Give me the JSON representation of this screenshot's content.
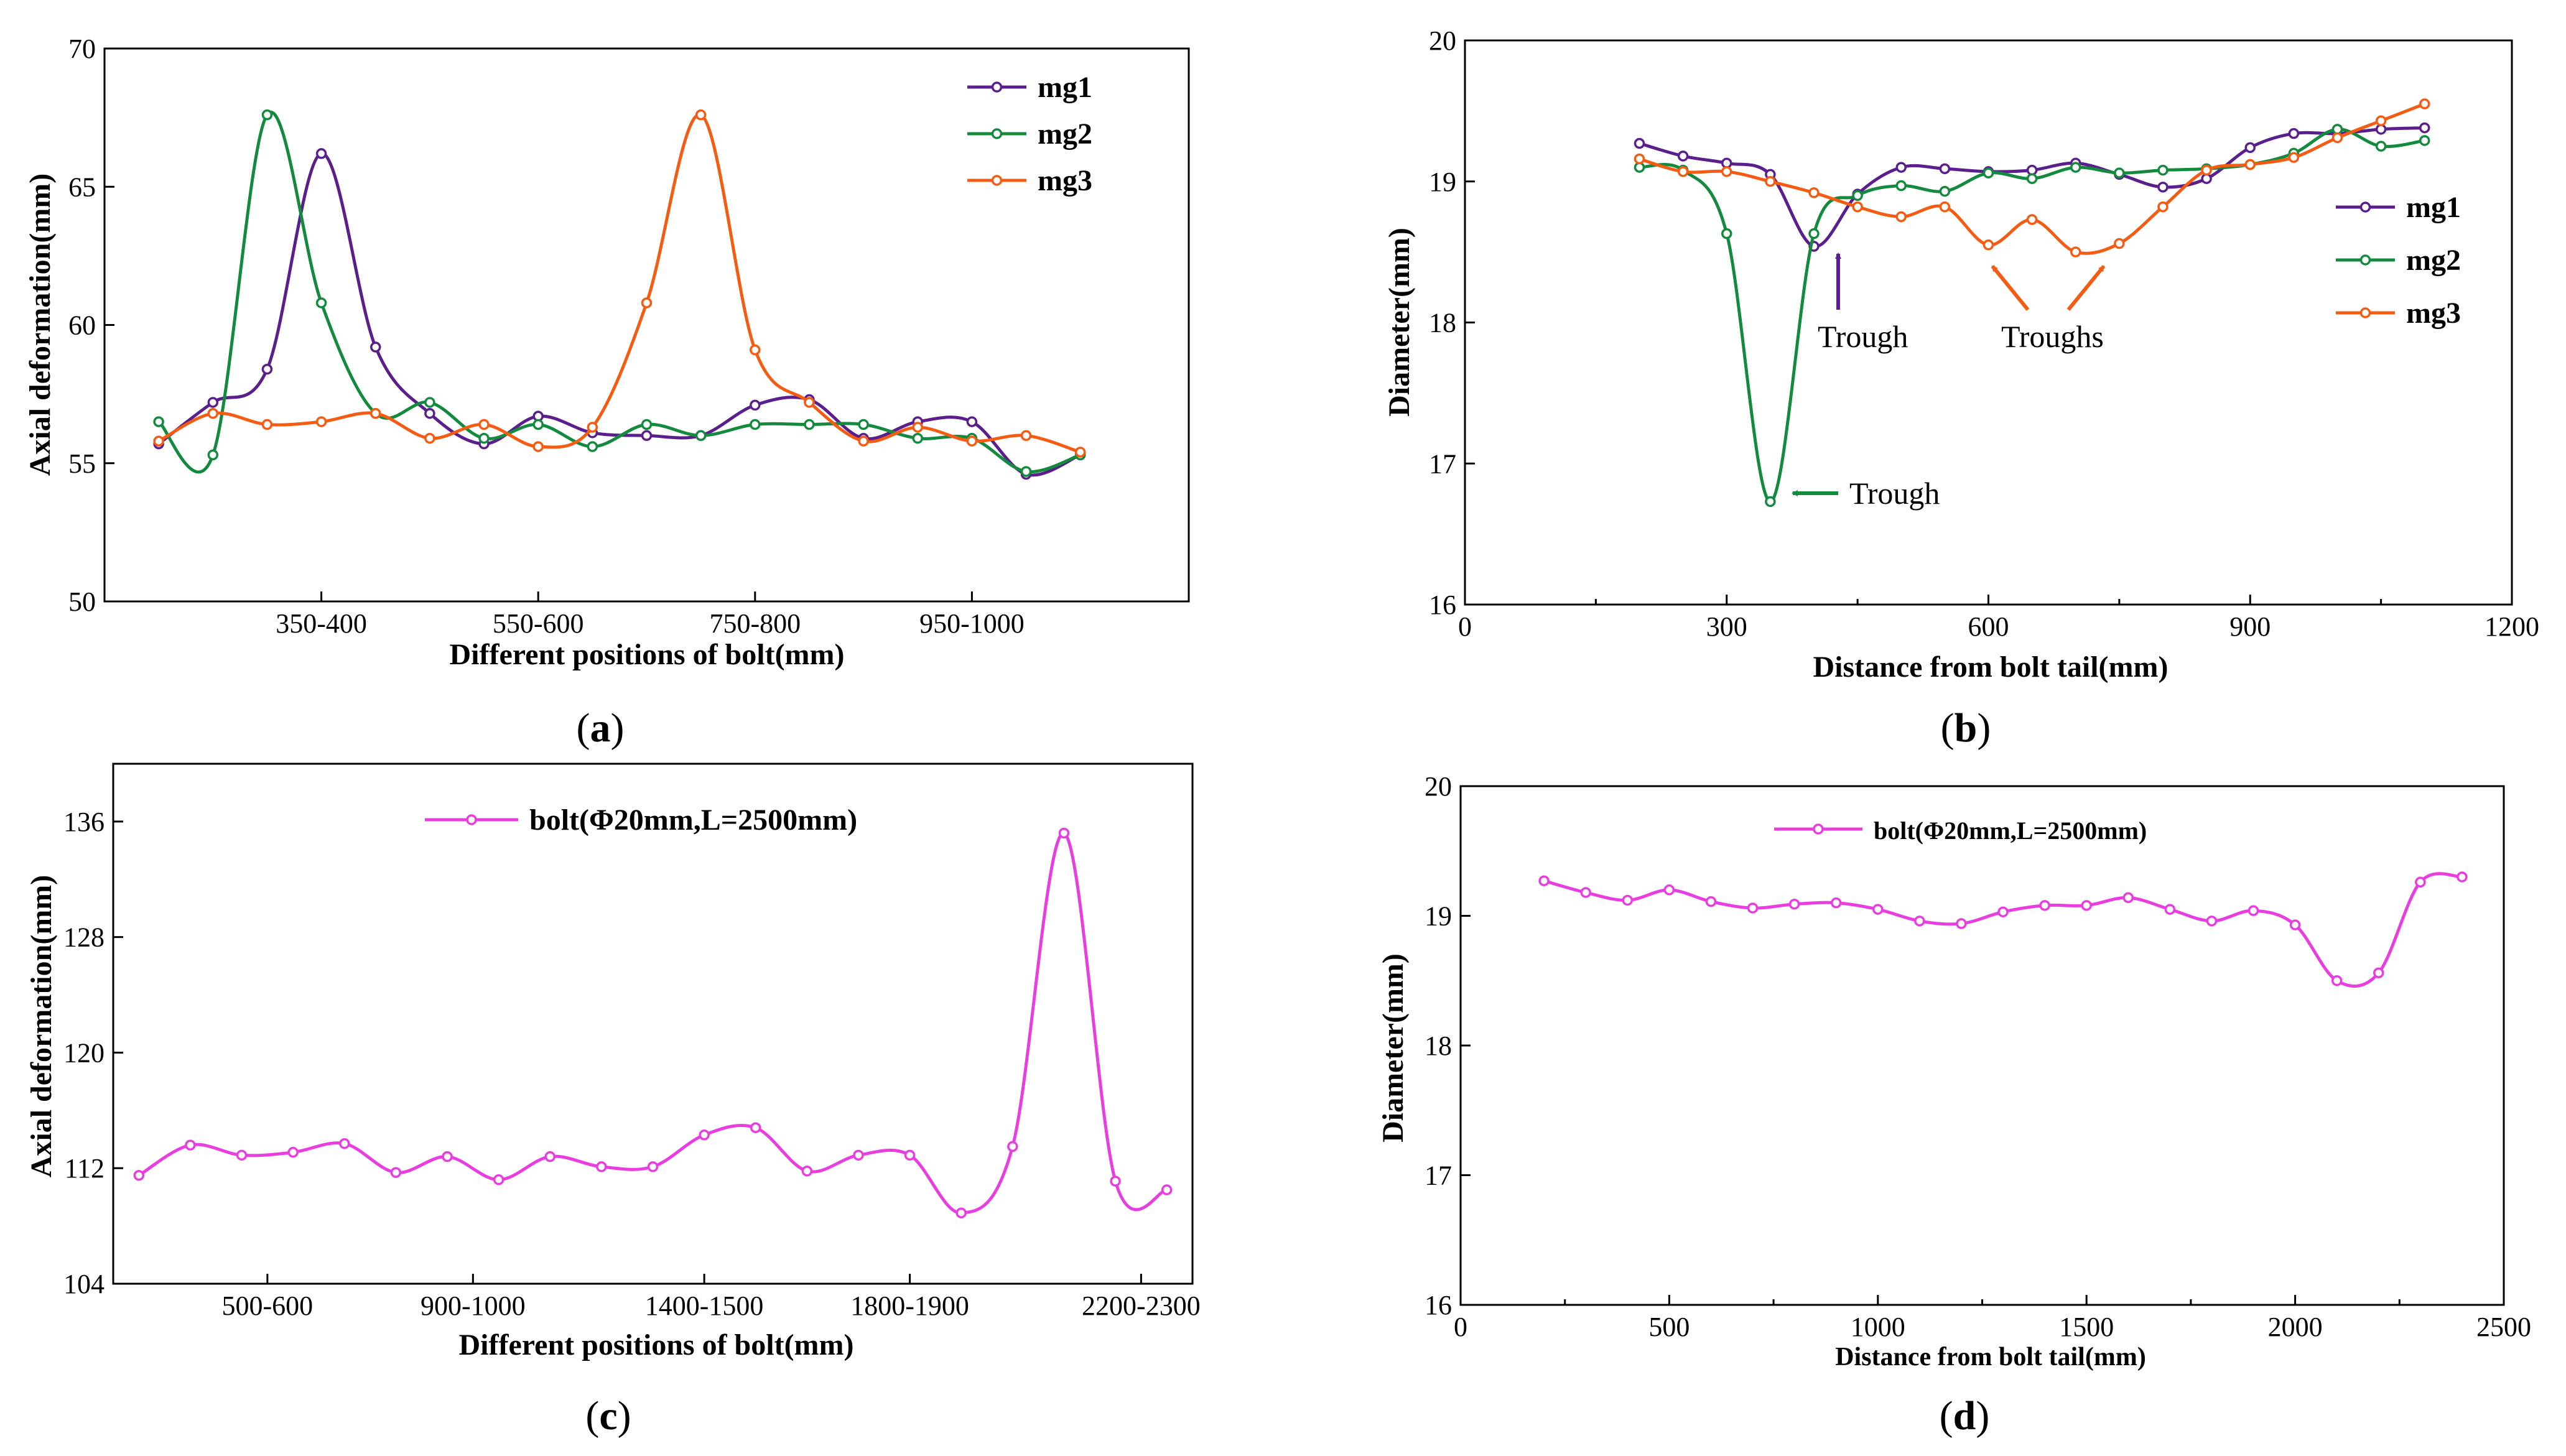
{
  "chart_data": [
    {
      "id": "a",
      "panel_label": "a",
      "type": "line",
      "title": "",
      "xlabel": "Different positions of bolt(mm)",
      "ylabel": "Axial deformation(mm)",
      "xlim": [
        0,
        20
      ],
      "ylim": [
        50,
        70
      ],
      "yticks": [
        50,
        55,
        60,
        65,
        70
      ],
      "xtick_positions": [
        4,
        8,
        12,
        16
      ],
      "xtick_labels": [
        "350-400",
        "550-600",
        "750-800",
        "950-1000"
      ],
      "legend_position": "top-right",
      "series": [
        {
          "name": "mg1",
          "color": "#5a1f8c",
          "x": [
            1,
            2,
            3,
            4,
            5,
            6,
            7,
            8,
            9,
            10,
            11,
            12,
            13,
            14,
            15,
            16,
            17,
            18
          ],
          "y": [
            55.7,
            57.2,
            58.4,
            66.2,
            59.2,
            56.8,
            55.7,
            56.7,
            56.1,
            56.0,
            56.0,
            57.1,
            57.3,
            55.9,
            56.5,
            56.5,
            54.6,
            55.3
          ]
        },
        {
          "name": "mg2",
          "color": "#138a3e",
          "x": [
            1,
            2,
            3,
            4,
            5,
            6,
            7,
            8,
            9,
            10,
            11,
            12,
            13,
            14,
            15,
            16,
            17,
            18
          ],
          "y": [
            56.5,
            55.3,
            67.6,
            60.8,
            56.8,
            57.2,
            55.9,
            56.4,
            55.6,
            56.4,
            56.0,
            56.4,
            56.4,
            56.4,
            55.9,
            55.9,
            54.7,
            55.3
          ]
        },
        {
          "name": "mg3",
          "color": "#f45c13",
          "x": [
            1,
            2,
            3,
            4,
            5,
            6,
            7,
            8,
            9,
            10,
            11,
            12,
            13,
            14,
            15,
            16,
            17,
            18
          ],
          "y": [
            55.8,
            56.8,
            56.4,
            56.5,
            56.8,
            55.9,
            56.4,
            55.6,
            56.3,
            60.8,
            67.6,
            59.1,
            57.2,
            55.8,
            56.3,
            55.8,
            56.0,
            55.4
          ]
        }
      ],
      "annotations": []
    },
    {
      "id": "b",
      "panel_label": "b",
      "type": "line",
      "title": "",
      "xlabel": "Distance from bolt tail(mm)",
      "ylabel": "Diameter(mm)",
      "xlim": [
        0,
        1200
      ],
      "ylim": [
        16,
        20
      ],
      "yticks": [
        16,
        17,
        18,
        19,
        20
      ],
      "xtick_positions": [
        0,
        300,
        600,
        900,
        1200
      ],
      "xtick_labels": [
        "0",
        "300",
        "600",
        "900",
        "1200"
      ],
      "legend_position": "right",
      "series": [
        {
          "name": "mg1",
          "color": "#5a1f8c",
          "x": [
            200,
            250,
            300,
            350,
            400,
            450,
            500,
            550,
            600,
            650,
            700,
            750,
            800,
            850,
            900,
            950,
            1000,
            1050,
            1100
          ],
          "y": [
            19.27,
            19.18,
            19.13,
            19.05,
            18.54,
            18.91,
            19.1,
            19.09,
            19.07,
            19.08,
            19.13,
            19.05,
            18.96,
            19.02,
            19.24,
            19.34,
            19.34,
            19.37,
            19.38
          ]
        },
        {
          "name": "mg2",
          "color": "#138a3e",
          "x": [
            200,
            250,
            300,
            350,
            400,
            450,
            500,
            550,
            600,
            650,
            700,
            750,
            800,
            850,
            900,
            950,
            1000,
            1050,
            1100
          ],
          "y": [
            19.1,
            19.08,
            18.63,
            16.73,
            18.63,
            18.9,
            18.97,
            18.93,
            19.06,
            19.02,
            19.1,
            19.06,
            19.08,
            19.09,
            19.12,
            19.2,
            19.37,
            19.25,
            19.29
          ]
        },
        {
          "name": "mg3",
          "color": "#f45c13",
          "x": [
            200,
            250,
            300,
            350,
            400,
            450,
            500,
            550,
            600,
            650,
            700,
            750,
            800,
            850,
            900,
            950,
            1000,
            1050,
            1100
          ],
          "y": [
            19.16,
            19.07,
            19.07,
            19.0,
            18.92,
            18.82,
            18.75,
            18.82,
            18.55,
            18.73,
            18.5,
            18.56,
            18.82,
            19.08,
            19.12,
            19.17,
            19.31,
            19.43,
            19.55
          ]
        }
      ],
      "annotations": [
        {
          "text": "Trough",
          "color": "#5a1f8c"
        },
        {
          "text": "Troughs",
          "color": "#f45c13"
        },
        {
          "text": "Trough",
          "color": "#138a3e"
        }
      ]
    },
    {
      "id": "c",
      "panel_label": "c",
      "type": "line",
      "title": "",
      "xlabel": "Different positions of bolt(mm)",
      "ylabel": "Axial deformation(mm)",
      "xlim": [
        0,
        21
      ],
      "ylim": [
        104,
        140
      ],
      "yticks": [
        104,
        112,
        120,
        128,
        136
      ],
      "xtick_positions": [
        3,
        7,
        11.5,
        15.5,
        20
      ],
      "xtick_labels": [
        "500-600",
        "900-1000",
        "1400-1500",
        "1800-1900",
        "2200-2300"
      ],
      "legend_position": "top-center",
      "series": [
        {
          "name": "bolt(Φ20mm,L=2500mm)",
          "color": "#e83ee0",
          "x": [
            0.5,
            1.5,
            2.5,
            3.5,
            4.5,
            5.5,
            6.5,
            7.5,
            8.5,
            9.5,
            10.5,
            11.5,
            12.5,
            13.5,
            14.5,
            15.5,
            16.5,
            17.5,
            18.5,
            19.5,
            20.5
          ],
          "y": [
            111.5,
            113.6,
            112.9,
            113.1,
            113.7,
            111.7,
            112.8,
            111.2,
            112.8,
            112.1,
            112.1,
            114.3,
            114.8,
            111.8,
            112.9,
            112.9,
            108.9,
            113.5,
            135.2,
            111.1,
            110.5
          ]
        }
      ],
      "annotations": []
    },
    {
      "id": "d",
      "panel_label": "d",
      "type": "line",
      "title": "",
      "xlabel": "Distance from bolt tail(mm)",
      "ylabel": "Diameter(mm)",
      "xlim": [
        0,
        2500
      ],
      "ylim": [
        16,
        20
      ],
      "yticks": [
        16,
        17,
        18,
        19,
        20
      ],
      "xtick_positions": [
        0,
        500,
        1000,
        1500,
        2000,
        2500
      ],
      "xtick_labels": [
        "0",
        "500",
        "1000",
        "1500",
        "2000",
        "2500"
      ],
      "legend_position": "top-center",
      "series": [
        {
          "name": "bolt(Φ20mm,L=2500mm)",
          "color": "#e83ee0",
          "x": [
            200,
            300,
            400,
            500,
            600,
            700,
            800,
            900,
            1000,
            1100,
            1200,
            1300,
            1400,
            1500,
            1600,
            1700,
            1800,
            1900,
            2000,
            2100,
            2200,
            2300,
            2400
          ],
          "y": [
            19.27,
            19.18,
            19.12,
            19.2,
            19.11,
            19.06,
            19.09,
            19.1,
            19.05,
            18.96,
            18.94,
            19.03,
            19.08,
            19.08,
            19.14,
            19.05,
            18.96,
            19.04,
            18.93,
            18.5,
            18.56,
            19.26,
            19.3
          ]
        }
      ],
      "annotations": []
    }
  ]
}
